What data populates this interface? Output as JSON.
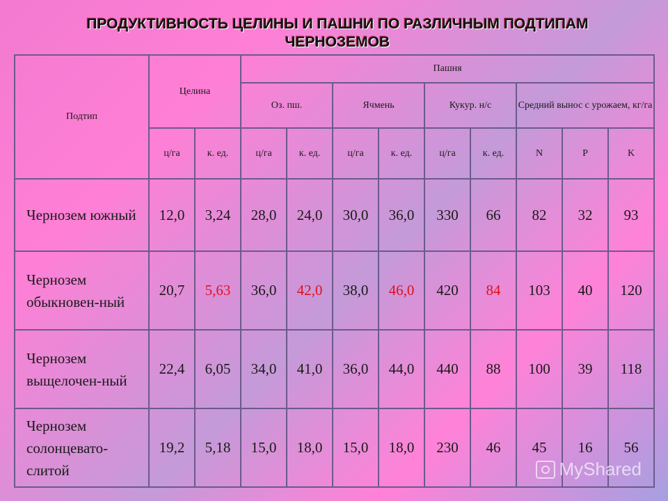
{
  "title": "ПРОДУКТИВНОСТЬ ЦЕЛИНЫ И ПАШНИ ПО РАЗЛИЧНЫМ ПОДТИПАМ ЧЕРНОЗЕМОВ",
  "header": {
    "subtype": "Подтип",
    "virgin": "Целина",
    "arable": "Пашня",
    "winter_wheat": "Оз. пш.",
    "barley": "Ячмень",
    "corn": "Кукур. н/с",
    "removal": "Средний вынос с урожаем, кг/га",
    "units": [
      "ц/га",
      "к. ед.",
      "ц/га",
      "к. ед.",
      "ц/га",
      "к. ед.",
      "ц/га",
      "к. ед.",
      "N",
      "P",
      "K"
    ]
  },
  "rows": [
    {
      "name": "Чернозем южный",
      "values": [
        "12,0",
        "3,24",
        "28,0",
        "24,0",
        "30,0",
        "36,0",
        "330",
        "66",
        "82",
        "32",
        "93"
      ]
    },
    {
      "name": "Чернозем обыкновен-ный",
      "values": [
        "20,7",
        "5,63",
        "36,0",
        "42,0",
        "38,0",
        "46,0",
        "420",
        "84",
        "103",
        "40",
        "120"
      ]
    },
    {
      "name": "Чернозем выщелочен-ный",
      "values": [
        "22,4",
        "6,05",
        "34,0",
        "41,0",
        "36,0",
        "44,0",
        "440",
        "88",
        "100",
        "39",
        "118"
      ]
    },
    {
      "name": "Чернозем солонцевато-слитой",
      "values": [
        "19,2",
        "5,18",
        "15,0",
        "18,0",
        "15,0",
        "18,0",
        "230",
        "46",
        "45",
        "16",
        "56"
      ]
    }
  ],
  "highlight_color": "#e0101e",
  "watermark": "MyShared"
}
